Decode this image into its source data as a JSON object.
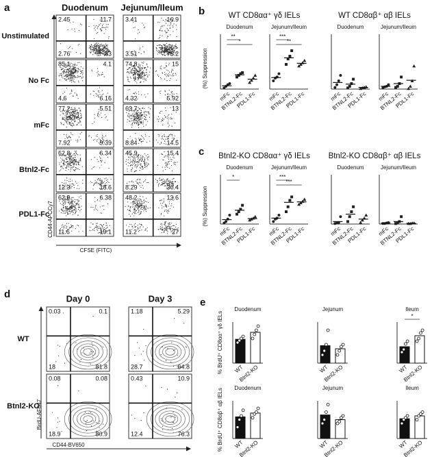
{
  "panel_a": {
    "label": "a",
    "columns": [
      "Duodenum",
      "Jejunum/Ileum"
    ],
    "rows": [
      "Unstimulated",
      "No Fc",
      "mFc",
      "Btnl2-Fc",
      "PDL1-Fc"
    ],
    "quadrants": [
      [
        [
          "2.45",
          "11.7",
          "2.76",
          "83"
        ],
        [
          "3.41",
          "16.9",
          "3.51",
          "76.2"
        ]
      ],
      [
        [
          "85.1",
          "4.1",
          "4.6",
          "6.16"
        ],
        [
          "74.8",
          "15",
          "4.32",
          "5.92"
        ]
      ],
      [
        [
          "77.2",
          "5.51",
          "7.92",
          "9.39"
        ],
        [
          "63.7",
          "13",
          "8.84",
          "14.5"
        ]
      ],
      [
        [
          "62.8",
          "6.34",
          "12.3",
          "18.6"
        ],
        [
          "45.9",
          "15.4",
          "8.29",
          "30.4"
        ]
      ],
      [
        [
          "62.9",
          "6.38",
          "11.6",
          "19.1"
        ],
        [
          "48.2",
          "13.6",
          "11.2",
          "27"
        ]
      ]
    ],
    "y_axis_label": "CD44-APCCy7",
    "x_axis_label": "CFSE (FITC)"
  },
  "panel_b": {
    "label": "b",
    "y_axis_label": "(%) Suppression",
    "ylim": [
      0,
      100
    ],
    "groups": [
      {
        "title": "WT CD8αα⁺ γδ IELs",
        "plots": [
          {
            "title": "Duodenum",
            "categories": [
              "mFc",
              "BTNL2-Fc",
              "PDL1-Fc"
            ],
            "points": [
              [
                2,
                5,
                8,
                10
              ],
              [
                22,
                25,
                28,
                30
              ],
              [
                12,
                16,
                20,
                25
              ]
            ],
            "means": [
              6,
              26,
              18
            ],
            "sig": [
              "**",
              "*"
            ]
          },
          {
            "title": "Jejunum/Ileum",
            "categories": [
              "mFc",
              "BTNL2-Fc",
              "PDL1-Fc"
            ],
            "points": [
              [
                15,
                20,
                22,
                28
              ],
              [
                45,
                55,
                60,
                70
              ],
              [
                42,
                45,
                48,
                52
              ]
            ],
            "means": [
              21,
              57,
              47
            ],
            "sig": [
              "***",
              "**"
            ]
          }
        ]
      },
      {
        "title": "WT CD8αβ⁺ αβ IELs",
        "plots": [
          {
            "title": "Duodenum",
            "categories": [
              "mFc",
              "BTNL2-Fc",
              "PDL1-Fc"
            ],
            "points": [
              [
                3,
                8,
                15,
                25
              ],
              [
                2,
                5,
                10,
                18
              ],
              [
                1,
                2,
                3,
                4
              ]
            ],
            "means": [
              12,
              9,
              3
            ]
          },
          {
            "title": "Jejunum/Ileum",
            "categories": [
              "mFc",
              "BTNL2-Fc",
              "PDL1-Fc"
            ],
            "points": [
              [
                2,
                4,
                5,
                8
              ],
              [
                3,
                5,
                10,
                22
              ],
              [
                1,
                5,
                15,
                42
              ]
            ],
            "means": [
              5,
              10,
              16
            ]
          }
        ]
      }
    ]
  },
  "panel_c": {
    "label": "c",
    "y_axis_label": "(%) Suppression",
    "ylim": [
      0,
      100
    ],
    "groups": [
      {
        "title": "Btnl2-KO CD8αα⁺ γδ IELs",
        "plots": [
          {
            "title": "Duodenum",
            "categories": [
              "mFc",
              "BTNL2-Fc",
              "PDL1-Fc"
            ],
            "points": [
              [
                2,
                5,
                10,
                18
              ],
              [
                20,
                25,
                30,
                38
              ],
              [
                8,
                10,
                12,
                15
              ]
            ],
            "means": [
              9,
              28,
              11
            ],
            "sig": [
              "*"
            ]
          },
          {
            "title": "Jejunum/Ileum",
            "categories": [
              "mFc",
              "BTNL2-Fc",
              "PDL1-Fc"
            ],
            "points": [
              [
                5,
                10,
                12,
                18
              ],
              [
                25,
                35,
                48,
                55
              ],
              [
                40,
                43,
                46,
                50
              ]
            ],
            "means": [
              12,
              44,
              45
            ],
            "sig": [
              "***",
              "***"
            ]
          }
        ]
      },
      {
        "title": "Btnl2-KO CD8αβ⁺ αβ IELs",
        "plots": [
          {
            "title": "Duodenum",
            "categories": [
              "mFc",
              "BTNL2-Fc",
              "PDL1-Fc"
            ],
            "points": [
              [
                1,
                2,
                3,
                15
              ],
              [
                5,
                15,
                25,
                35
              ],
              [
                3,
                8,
                12,
                18
              ]
            ],
            "means": [
              5,
              20,
              10
            ]
          },
          {
            "title": "Jejunum/Ileum",
            "categories": [
              "mFc",
              "BTNL2-Fc",
              "PDL1-Fc"
            ],
            "points": [
              [
                1,
                1,
                2,
                3
              ],
              [
                1,
                2,
                5,
                15
              ],
              [
                1,
                1,
                2,
                2
              ]
            ],
            "means": [
              2,
              5,
              1.5
            ]
          }
        ]
      }
    ]
  },
  "panel_d": {
    "label": "d",
    "columns": [
      "Day 0",
      "Day 3"
    ],
    "rows": [
      "WT",
      "Btnl2-KO"
    ],
    "quadrants": [
      [
        [
          "0.03",
          "0.1",
          "18",
          "81.8"
        ],
        [
          "1.18",
          "5.29",
          "28.7",
          "64.8"
        ]
      ],
      [
        [
          "0.08",
          "0.08",
          "18.9",
          "80.9"
        ],
        [
          "0.43",
          "10.9",
          "12.4",
          "76.3"
        ]
      ]
    ],
    "y_axis_label": "BrdU-AF647",
    "x_axis_label": "CD44-BV650"
  },
  "panel_e": {
    "label": "e",
    "rows": [
      {
        "y_axis_label": "% BrdU⁺ CD8αα⁺ γδ IELs",
        "plots": [
          {
            "title": "Duodenum",
            "categories": [
              "WT",
              "Btnl2-KO"
            ],
            "ylim": [
              0,
              10
            ],
            "points": [
              [
                5,
                5.5,
                6,
                6.5
              ],
              [
                6,
                7,
                8,
                9
              ]
            ],
            "means": [
              5.8,
              7.5
            ]
          },
          {
            "title": "Jejunum",
            "categories": [
              "WT",
              "Btnl2-KO"
            ],
            "ylim": [
              0,
              20
            ],
            "points": [
              [
                4,
                6,
                9,
                16
              ],
              [
                4,
                6,
                8,
                9
              ]
            ],
            "means": [
              8.5,
              7
            ]
          },
          {
            "title": "Ileum",
            "categories": [
              "WT",
              "Btnl2-KO"
            ],
            "ylim": [
              0,
              15
            ],
            "points": [
              [
                4,
                5,
                7,
                8
              ],
              [
                8,
                9,
                11,
                12
              ]
            ],
            "means": [
              6,
              10
            ],
            "sig": [
              "*"
            ]
          }
        ]
      },
      {
        "y_axis_label": "% BrdU⁺ CD8αβ⁺ αβ IELs",
        "plots": [
          {
            "title": "Duodenum",
            "categories": [
              "WT",
              "Btnl2-KO"
            ],
            "ylim": [
              0,
              20
            ],
            "points": [
              [
                6,
                10,
                12,
                15
              ],
              [
                11,
                13,
                14,
                16
              ]
            ],
            "means": [
              11.5,
              13.5
            ]
          },
          {
            "title": "Jejunum",
            "categories": [
              "WT",
              "Btnl2-KO"
            ],
            "ylim": [
              0,
              20
            ],
            "points": [
              [
                8,
                10,
                14,
                18
              ],
              [
                8,
                9,
                11,
                12
              ]
            ],
            "means": [
              12.5,
              10
            ]
          },
          {
            "title": "Ileum",
            "categories": [
              "WT",
              "Btnl2-KO"
            ],
            "ylim": [
              0,
              20
            ],
            "points": [
              [
                8,
                10,
                11,
                12
              ],
              [
                10,
                12,
                13,
                14
              ]
            ],
            "means": [
              10.5,
              12
            ]
          }
        ]
      }
    ]
  }
}
